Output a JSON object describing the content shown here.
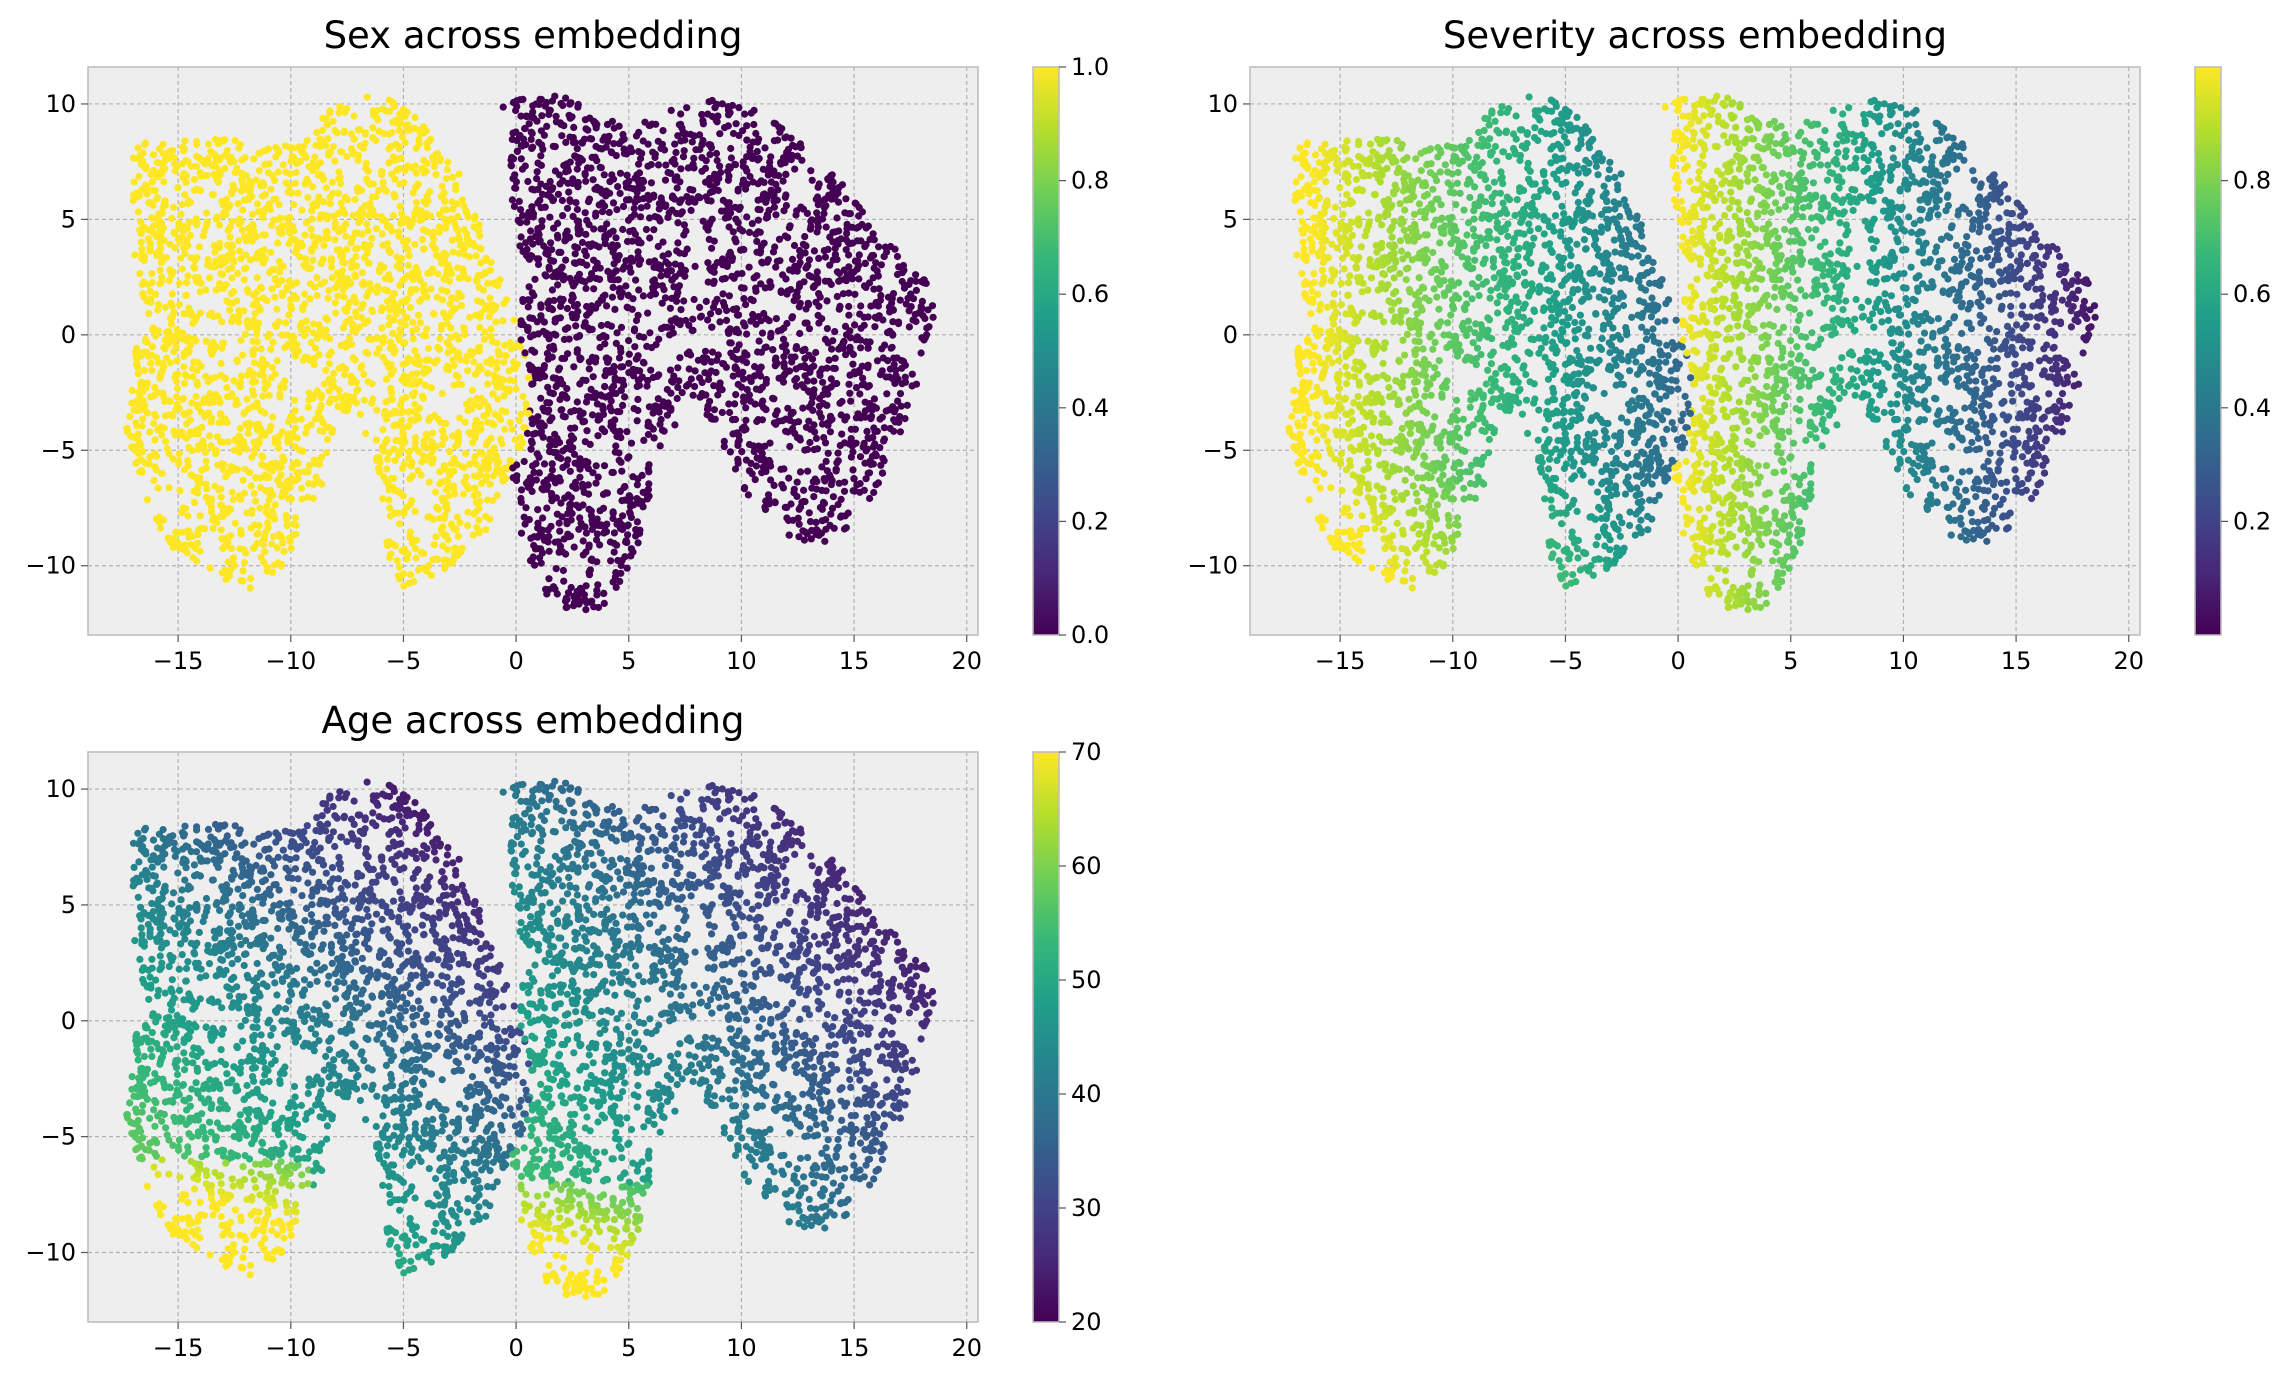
{
  "chart_data": [
    {
      "type": "scatter",
      "title": "Sex across embedding",
      "xlabel": "",
      "ylabel": "",
      "xlim": [
        -19,
        20.5
      ],
      "ylim": [
        -13,
        11.6
      ],
      "xticks": [
        -15,
        -10,
        -5,
        0,
        5,
        10,
        15,
        20
      ],
      "yticks": [
        -10,
        -5,
        0,
        5,
        10
      ],
      "grid": true,
      "colormap": "viridis",
      "color_variable": "sex",
      "colorbar": {
        "min": 0.0,
        "max": 1.0,
        "ticks": [
          "0.0",
          "0.2",
          "0.4",
          "0.6",
          "0.8",
          "1.0"
        ],
        "tick_values": [
          0.0,
          0.2,
          0.4,
          0.6,
          0.8,
          1.0
        ]
      },
      "series": [
        {
          "values_description_cluster": "left",
          "x_range": [
            -17.3,
            0.7
          ],
          "y_range": [
            -11.0,
            10.5
          ],
          "color_value": 1.0
        },
        {
          "values_description_cluster": "right",
          "x_range": [
            -0.6,
            18.6
          ],
          "y_range": [
            -12.0,
            10.5
          ],
          "color_value": 0.0
        }
      ]
    },
    {
      "type": "scatter",
      "title": "Severity across embedding",
      "xlabel": "",
      "ylabel": "",
      "xlim": [
        -19,
        20.5
      ],
      "ylim": [
        -13,
        11.6
      ],
      "xticks": [
        -15,
        -10,
        -5,
        0,
        5,
        10,
        15,
        20
      ],
      "yticks": [
        -10,
        -5,
        0,
        5,
        10
      ],
      "grid": true,
      "colormap": "viridis",
      "color_variable": "severity",
      "colorbar": {
        "min": 0.0,
        "max": 1.0,
        "ticks": [
          "0.2",
          "0.4",
          "0.6",
          "0.8"
        ],
        "tick_values": [
          0.2,
          0.4,
          0.6,
          0.8
        ]
      },
      "series": [
        {
          "values_description_cluster": "left",
          "color_range": [
            0.25,
            1.0
          ]
        },
        {
          "values_description_cluster": "right",
          "color_range": [
            0.05,
            1.0
          ]
        }
      ]
    },
    {
      "type": "scatter",
      "title": "Age across embedding",
      "xlabel": "",
      "ylabel": "",
      "xlim": [
        -19,
        20.5
      ],
      "ylim": [
        -13,
        11.6
      ],
      "xticks": [
        -15,
        -10,
        -5,
        0,
        5,
        10,
        15,
        20
      ],
      "yticks": [
        -10,
        -5,
        0,
        5,
        10
      ],
      "grid": true,
      "colormap": "viridis",
      "color_variable": "age",
      "colorbar": {
        "min": 20,
        "max": 70,
        "ticks": [
          "20",
          "30",
          "40",
          "50",
          "60",
          "70"
        ],
        "tick_values": [
          20,
          30,
          40,
          50,
          60,
          70
        ]
      },
      "series": [
        {
          "values_description_cluster": "left",
          "color_range": [
            20,
            70
          ]
        },
        {
          "values_description_cluster": "right",
          "color_range": [
            20,
            70
          ]
        }
      ]
    }
  ],
  "tick_text": {
    "x": [
      "−15",
      "−10",
      "−5",
      "0",
      "5",
      "10",
      "15",
      "20"
    ],
    "y": [
      "−10",
      "−5",
      "0",
      "5",
      "10"
    ]
  },
  "colors": {
    "axes_bg": "#eeeeee",
    "grid": "#b2b2b2",
    "spine": "#bcbcbc",
    "viridis": [
      "#440154",
      "#482878",
      "#3e4989",
      "#31688e",
      "#26828e",
      "#1f9e89",
      "#35b779",
      "#6ece58",
      "#b5de2b",
      "#fde725"
    ]
  }
}
